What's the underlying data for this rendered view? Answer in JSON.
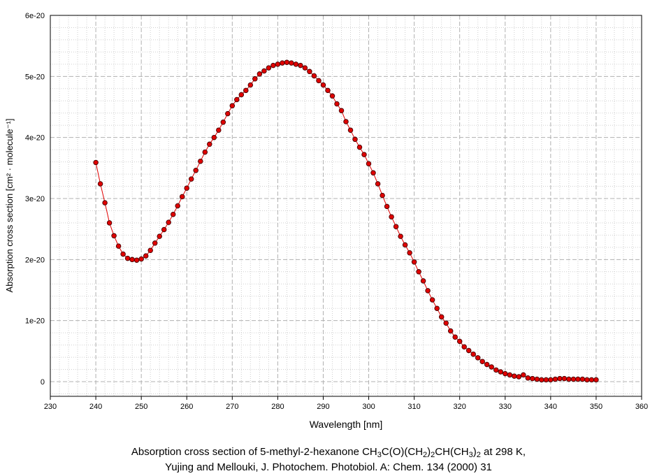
{
  "chart_data": {
    "type": "scatter",
    "xlabel": "Wavelength [nm]",
    "ylabel": "Absorption cross section [cm² · molecule⁻¹]",
    "xlim": [
      230,
      360
    ],
    "ylim": [
      0,
      6e-20
    ],
    "xticks": [
      "230",
      "240",
      "250",
      "260",
      "270",
      "280",
      "290",
      "300",
      "310",
      "320",
      "330",
      "340",
      "350",
      "360"
    ],
    "yticks": [
      "0",
      "1e-20",
      "2e-20",
      "3e-20",
      "4e-20",
      "5e-20",
      "6e-20"
    ],
    "grid": true,
    "series": [
      {
        "marker": "circle",
        "line": true,
        "color": "#e00000",
        "x": [
          240,
          241,
          242,
          243,
          244,
          245,
          246,
          247,
          248,
          249,
          250,
          251,
          252,
          253,
          254,
          255,
          256,
          257,
          258,
          259,
          260,
          261,
          262,
          263,
          264,
          265,
          266,
          267,
          268,
          269,
          270,
          271,
          272,
          273,
          274,
          275,
          276,
          277,
          278,
          279,
          280,
          281,
          282,
          283,
          284,
          285,
          286,
          287,
          288,
          289,
          290,
          291,
          292,
          293,
          294,
          295,
          296,
          297,
          298,
          299,
          300,
          301,
          302,
          303,
          304,
          305,
          306,
          307,
          308,
          309,
          310,
          311,
          312,
          313,
          314,
          315,
          316,
          317,
          318,
          319,
          320,
          321,
          322,
          323,
          324,
          325,
          326,
          327,
          328,
          329,
          330,
          331,
          332,
          333,
          334,
          335,
          336,
          337,
          338,
          339,
          340,
          341,
          342,
          343,
          344,
          345,
          346,
          347,
          348,
          349,
          350
        ],
        "y": [
          3.59e-20,
          3.24e-20,
          2.93e-20,
          2.6e-20,
          2.39e-20,
          2.22e-20,
          2.09e-20,
          2.02e-20,
          2e-20,
          1.99e-20,
          2.01e-20,
          2.06e-20,
          2.15e-20,
          2.27e-20,
          2.38e-20,
          2.49e-20,
          2.61e-20,
          2.74e-20,
          2.88e-20,
          3.03e-20,
          3.17e-20,
          3.32e-20,
          3.46e-20,
          3.61e-20,
          3.76e-20,
          3.89e-20,
          4e-20,
          4.12e-20,
          4.25e-20,
          4.39e-20,
          4.52e-20,
          4.62e-20,
          4.7e-20,
          4.77e-20,
          4.86e-20,
          4.96e-20,
          5.04e-20,
          5.09e-20,
          5.14e-20,
          5.18e-20,
          5.2e-20,
          5.22e-20,
          5.23e-20,
          5.22e-20,
          5.2e-20,
          5.18e-20,
          5.14e-20,
          5.08e-20,
          5.01e-20,
          4.93e-20,
          4.86e-20,
          4.77e-20,
          4.68e-20,
          4.55e-20,
          4.44e-20,
          4.26e-20,
          4.12e-20,
          3.97e-20,
          3.84e-20,
          3.72e-20,
          3.57e-20,
          3.42e-20,
          3.24e-20,
          3.05e-20,
          2.87e-20,
          2.7e-20,
          2.54e-20,
          2.38e-20,
          2.24e-20,
          2.11e-20,
          1.96e-20,
          1.8e-20,
          1.65e-20,
          1.49e-20,
          1.34e-20,
          1.2e-20,
          1.06e-20,
          9.6e-21,
          8.3e-21,
          7.3e-21,
          6.6e-21,
          5.7e-21,
          5.1e-21,
          4.5e-21,
          3.9e-21,
          3.3e-21,
          2.8e-21,
          2.4e-21,
          1.9e-21,
          1.6e-21,
          1.3e-21,
          1.1e-21,
          9e-22,
          8e-22,
          1.1e-21,
          6e-22,
          5e-22,
          4e-22,
          3e-22,
          3e-22,
          3e-22,
          4e-22,
          5e-22,
          5e-22,
          4e-22,
          4e-22,
          4e-22,
          4e-22,
          3e-22,
          3e-22,
          3e-22
        ]
      }
    ]
  },
  "caption": {
    "line1_a": "Absorption cross section of 5-methyl-2-hexanone CH",
    "line1_s1": "3",
    "line1_b": "C(O)(CH",
    "line1_s2": "2",
    "line1_c": ")",
    "line1_s3": "2",
    "line1_d": "CH(CH",
    "line1_s4": "3",
    "line1_e": ")",
    "line1_s5": "2",
    "line1_f": " at 298 K,",
    "line2": "Yujing and Mellouki, J. Photochem. Photobiol. A: Chem. 134 (2000) 31"
  }
}
